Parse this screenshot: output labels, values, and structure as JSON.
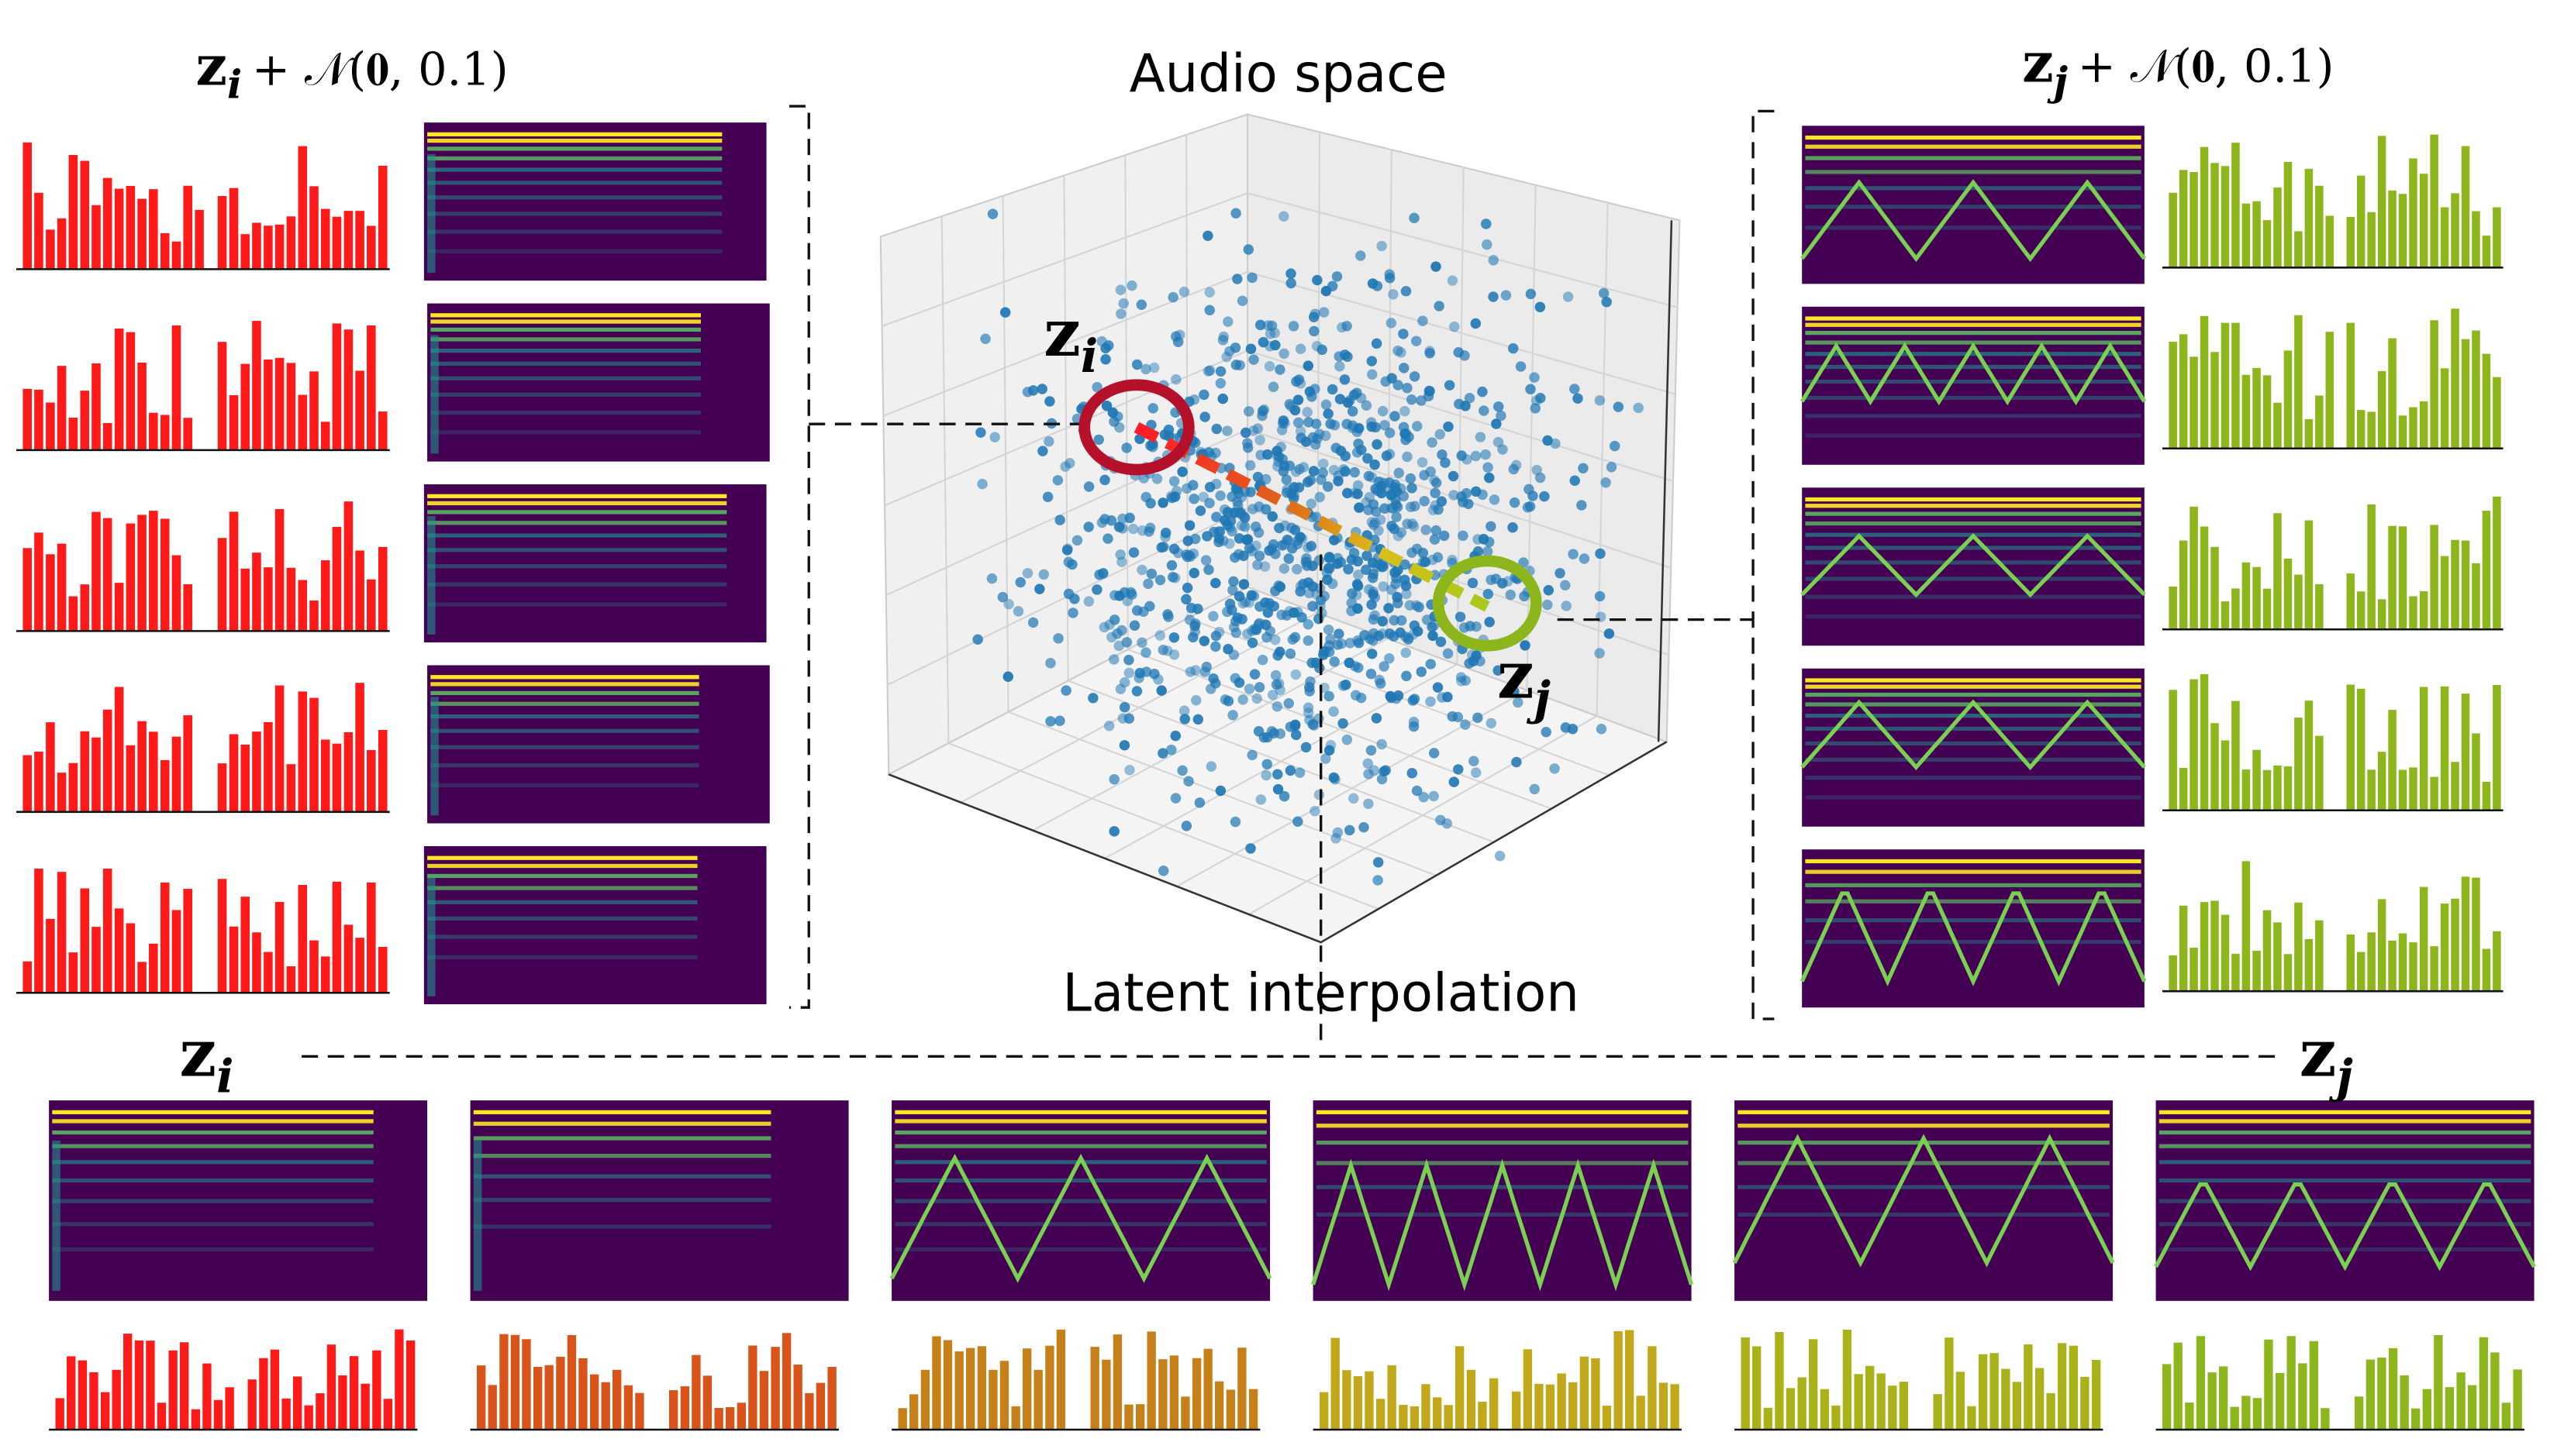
{
  "labels": {
    "top_left": {
      "symbol": "z",
      "subscript": "i",
      "noise": "+ 𝒩(𝟎, 0.1)"
    },
    "top_center": "Audio space",
    "top_right": {
      "symbol": "z",
      "subscript": "j",
      "noise": "+ 𝒩(𝟎, 0.1)"
    },
    "point_i": {
      "symbol": "z",
      "subscript": "i"
    },
    "point_j": {
      "symbol": "z",
      "subscript": "j"
    },
    "interpolation": "Latent interpolation",
    "bottom_left": {
      "symbol": "z",
      "subscript": "i"
    },
    "bottom_right": {
      "symbol": "z",
      "subscript": "j"
    }
  }
}
